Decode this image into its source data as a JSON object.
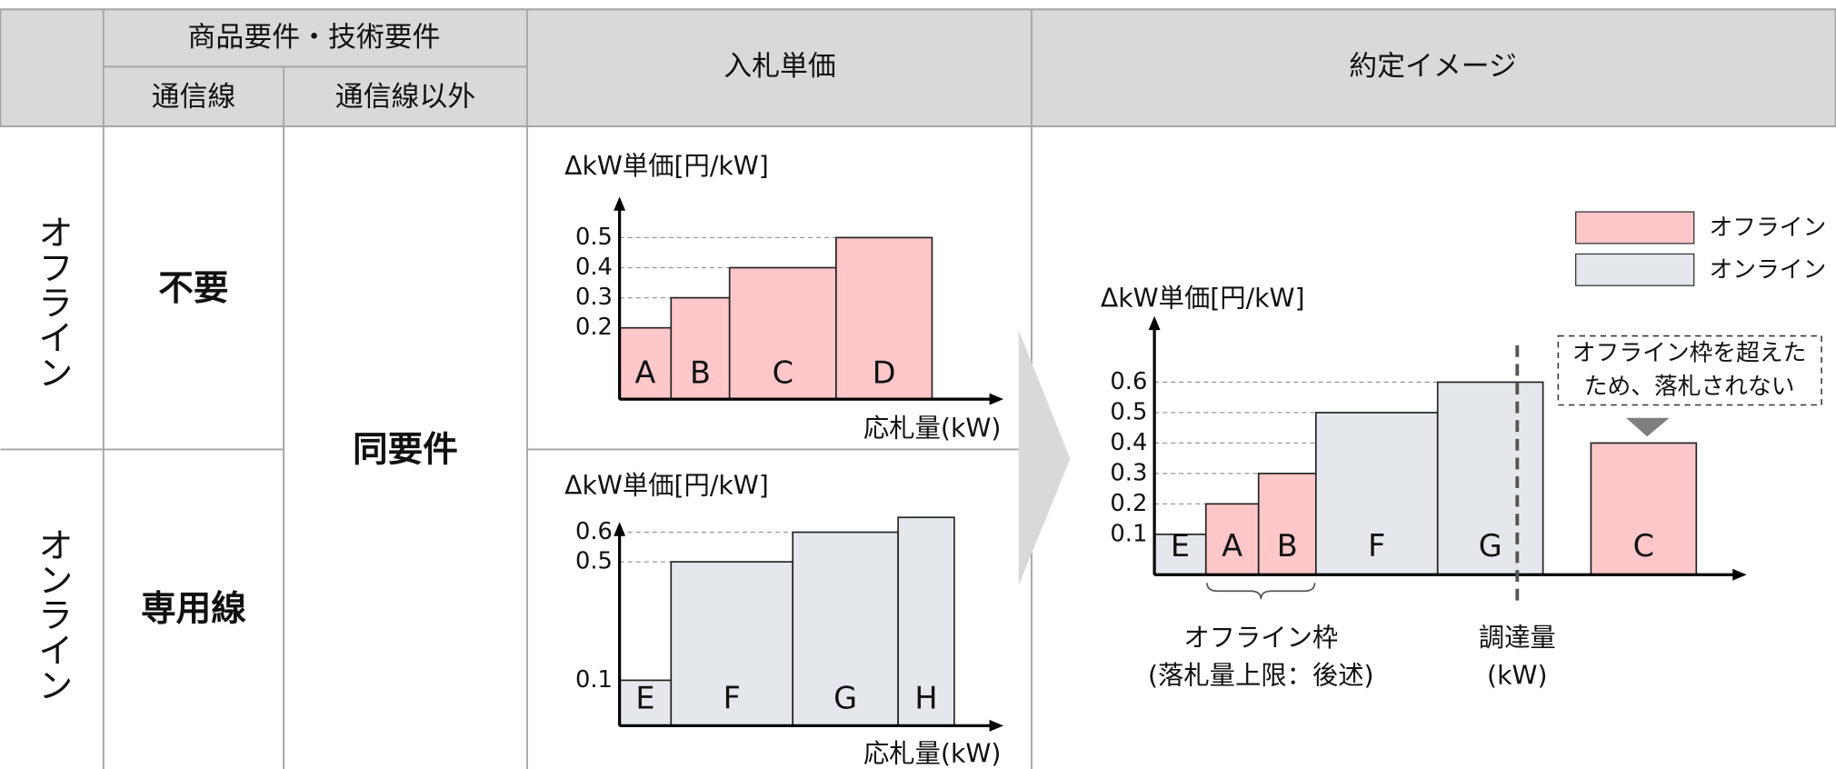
{
  "header": {
    "group": "商品要件・技術要件",
    "col1": "通信線",
    "col2": "通信線以外",
    "bid": "入札単価",
    "result": "約定イメージ"
  },
  "rows": [
    {
      "label": "オフライン",
      "line": "不要"
    },
    {
      "label": "オンライン",
      "line": "専用線"
    }
  ],
  "common": "同要件",
  "legend": [
    {
      "name": "オフライン",
      "color": "#ffc7c9"
    },
    {
      "name": "オンライン",
      "color": "#e4e7ec"
    }
  ],
  "bid_charts": [
    {
      "y_label": "ΔkW単価[円/kW]",
      "x_label": "応札量(kW)",
      "ticks": [
        0.2,
        0.3,
        0.4,
        0.5
      ],
      "bars": [
        {
          "label": "A",
          "value": 0.2,
          "kind": 0
        },
        {
          "label": "B",
          "value": 0.3,
          "kind": 0
        },
        {
          "label": "C",
          "value": 0.4,
          "kind": 0
        },
        {
          "label": "D",
          "value": 0.5,
          "kind": 0
        }
      ]
    },
    {
      "y_label": "ΔkW単価[円/kW]",
      "x_label": "応札量(kW)",
      "ticks": [
        0.1,
        0.5,
        0.6
      ],
      "bars": [
        {
          "label": "E",
          "value": 0.1,
          "kind": 1
        },
        {
          "label": "F",
          "value": 0.5,
          "kind": 1
        },
        {
          "label": "G",
          "value": 0.6,
          "kind": 1
        },
        {
          "label": "H",
          "value": 0.65,
          "kind": 1
        }
      ]
    }
  ],
  "result_chart": {
    "y_label": "ΔkW単価[円/kW]",
    "ticks": [
      0.1,
      0.2,
      0.3,
      0.4,
      0.5,
      0.6
    ],
    "bars": [
      {
        "label": "E",
        "value": 0.1,
        "kind": 1
      },
      {
        "label": "A",
        "value": 0.2,
        "kind": 0
      },
      {
        "label": "B",
        "value": 0.3,
        "kind": 0
      },
      {
        "label": "F",
        "value": 0.5,
        "kind": 1
      },
      {
        "label": "G",
        "value": 0.6,
        "kind": 1
      },
      {
        "label": "C",
        "value": 0.4,
        "kind": 0
      }
    ],
    "note": [
      "オフライン枠を超えた",
      "ため、落札されない"
    ],
    "frame_label": [
      "オフライン枠",
      "(落札量上限：後述)"
    ],
    "procure_label": [
      "調達量",
      "(kW)"
    ]
  }
}
